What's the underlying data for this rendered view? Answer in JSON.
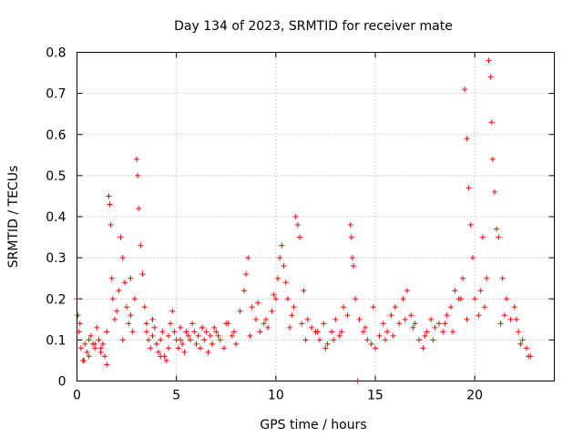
{
  "chart_data": {
    "type": "scatter",
    "title": "Day 134 of 2023, SRMTID for receiver mate",
    "xlabel": "GPS time / hours",
    "ylabel": "SRMTID / TECUs",
    "xlim": [
      0,
      24
    ],
    "ylim": [
      0,
      0.8
    ],
    "grid": true,
    "marker": "+",
    "color": "#ff0000",
    "x_ticks": [
      0,
      5,
      10,
      15,
      20
    ],
    "x_tick_labels": [
      "0",
      "5",
      "10",
      "15",
      "20"
    ],
    "y_ticks": [
      0,
      0.1,
      0.2,
      0.3,
      0.4,
      0.5,
      0.6,
      0.7,
      0.8
    ],
    "y_tick_labels": [
      "0",
      "0.1",
      "0.2",
      "0.3",
      "0.4",
      "0.5",
      "0.6",
      "0.7",
      "0.8"
    ],
    "series": [
      {
        "name": "SRMTID",
        "x": [
          0.0,
          0.05,
          0.1,
          0.2,
          0.3,
          0.4,
          0.5,
          0.6,
          0.7,
          0.8,
          0.9,
          1.0,
          1.1,
          1.2,
          1.3,
          1.4,
          1.5,
          1.6,
          1.65,
          1.7,
          1.75,
          1.8,
          1.9,
          2.0,
          2.1,
          2.2,
          2.3,
          2.4,
          2.5,
          2.6,
          2.7,
          2.8,
          2.9,
          3.0,
          3.05,
          3.1,
          3.2,
          3.3,
          3.4,
          3.5,
          3.6,
          3.7,
          3.8,
          3.9,
          4.0,
          4.1,
          4.2,
          4.3,
          4.4,
          4.5,
          4.6,
          4.7,
          4.8,
          4.9,
          5.0,
          5.1,
          5.2,
          5.3,
          5.4,
          5.5,
          5.6,
          5.7,
          5.8,
          5.9,
          6.0,
          6.1,
          6.2,
          6.3,
          6.4,
          6.5,
          6.6,
          6.7,
          6.8,
          6.9,
          7.0,
          7.2,
          7.4,
          7.6,
          7.8,
          8.0,
          8.2,
          8.4,
          8.5,
          8.6,
          8.8,
          9.0,
          9.2,
          9.4,
          9.6,
          9.8,
          10.0,
          10.1,
          10.2,
          10.3,
          10.4,
          10.5,
          10.6,
          10.8,
          10.9,
          11.0,
          11.1,
          11.2,
          11.4,
          11.6,
          11.8,
          12.0,
          12.2,
          12.4,
          12.6,
          12.8,
          13.0,
          13.2,
          13.4,
          13.6,
          13.75,
          13.8,
          13.85,
          13.9,
          14.0,
          14.2,
          14.4,
          14.6,
          14.8,
          15.0,
          15.2,
          15.4,
          15.6,
          15.8,
          16.0,
          16.2,
          16.4,
          16.6,
          16.8,
          17.0,
          17.2,
          17.4,
          17.6,
          17.8,
          18.0,
          18.2,
          18.4,
          18.6,
          18.8,
          19.0,
          19.2,
          19.4,
          19.5,
          19.6,
          19.7,
          19.8,
          19.9,
          20.0,
          20.2,
          20.4,
          20.6,
          20.7,
          20.8,
          20.85,
          20.9,
          21.0,
          21.1,
          21.2,
          21.4,
          21.6,
          21.8,
          22.0,
          22.2,
          22.4,
          22.6,
          22.8,
          0.15,
          0.6,
          1.2,
          2.3,
          3.5,
          4.2,
          5.5,
          6.8,
          7.5,
          8.7,
          9.5,
          10.7,
          11.5,
          12.5,
          13.3,
          14.5,
          15.5,
          16.5,
          17.5,
          18.5,
          19.3,
          20.5,
          21.5,
          22.3,
          0.35,
          0.9,
          1.5,
          2.7,
          3.8,
          4.6,
          5.2,
          6.3,
          7.1,
          7.9,
          9.1,
          9.9,
          11.3,
          12.1,
          12.9,
          14.1,
          14.9,
          15.9,
          16.9,
          17.9,
          18.9,
          19.6,
          20.3,
          21.3,
          22.1,
          22.7
        ],
        "y": [
          0.2,
          0.16,
          0.12,
          0.08,
          0.05,
          0.09,
          0.07,
          0.1,
          0.11,
          0.09,
          0.08,
          0.13,
          0.1,
          0.07,
          0.09,
          0.06,
          0.12,
          0.45,
          0.43,
          0.38,
          0.25,
          0.2,
          0.15,
          0.17,
          0.22,
          0.35,
          0.3,
          0.24,
          0.18,
          0.14,
          0.16,
          0.12,
          0.2,
          0.54,
          0.5,
          0.42,
          0.33,
          0.26,
          0.18,
          0.12,
          0.1,
          0.08,
          0.11,
          0.13,
          0.09,
          0.07,
          0.1,
          0.12,
          0.06,
          0.05,
          0.11,
          0.14,
          0.17,
          0.12,
          0.1,
          0.08,
          0.13,
          0.09,
          0.07,
          0.12,
          0.11,
          0.1,
          0.14,
          0.12,
          0.09,
          0.11,
          0.08,
          0.13,
          0.1,
          0.12,
          0.07,
          0.11,
          0.09,
          0.13,
          0.12,
          0.1,
          0.08,
          0.14,
          0.11,
          0.09,
          0.17,
          0.22,
          0.26,
          0.3,
          0.18,
          0.15,
          0.12,
          0.14,
          0.13,
          0.17,
          0.2,
          0.25,
          0.3,
          0.33,
          0.28,
          0.24,
          0.2,
          0.16,
          0.18,
          0.4,
          0.38,
          0.35,
          0.22,
          0.15,
          0.13,
          0.12,
          0.1,
          0.14,
          0.09,
          0.12,
          0.15,
          0.11,
          0.18,
          0.16,
          0.38,
          0.35,
          0.3,
          0.28,
          0.2,
          0.15,
          0.12,
          0.1,
          0.09,
          0.08,
          0.11,
          0.14,
          0.12,
          0.16,
          0.18,
          0.14,
          0.2,
          0.22,
          0.16,
          0.14,
          0.1,
          0.08,
          0.12,
          0.15,
          0.13,
          0.14,
          0.12,
          0.16,
          0.18,
          0.22,
          0.2,
          0.25,
          0.71,
          0.59,
          0.47,
          0.38,
          0.3,
          0.2,
          0.16,
          0.35,
          0.25,
          0.78,
          0.74,
          0.63,
          0.54,
          0.46,
          0.37,
          0.35,
          0.25,
          0.2,
          0.15,
          0.18,
          0.12,
          0.1,
          0.08,
          0.06,
          0.14,
          0.06,
          0.08,
          0.1,
          0.14,
          0.06,
          0.12,
          0.09,
          0.14,
          0.11,
          0.15,
          0.13,
          0.1,
          0.08,
          0.12,
          0.13,
          0.1,
          0.15,
          0.11,
          0.14,
          0.2,
          0.18,
          0.16,
          0.09,
          0.05,
          0.09,
          0.04,
          0.25,
          0.15,
          0.08,
          0.1,
          0.13,
          0.11,
          0.12,
          0.19,
          0.21,
          0.14,
          0.12,
          0.1,
          0.0,
          0.18,
          0.11,
          0.13,
          0.1,
          0.12,
          0.15,
          0.22,
          0.14,
          0.15,
          0.06
        ]
      }
    ]
  }
}
